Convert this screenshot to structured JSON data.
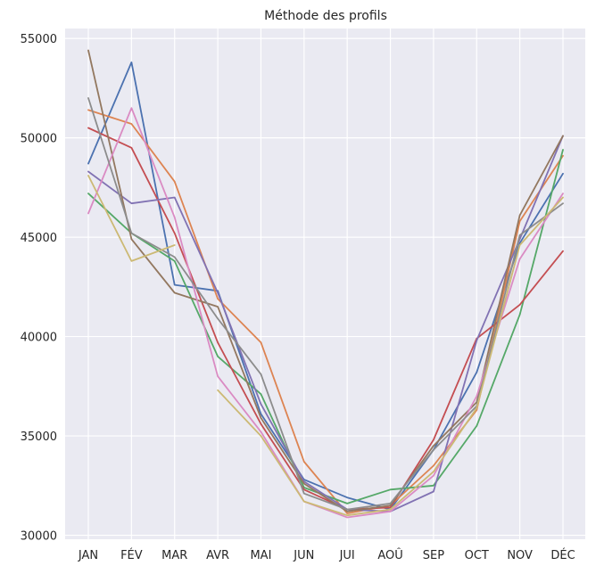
{
  "chart_data": {
    "type": "line",
    "title": "Méthode des profils",
    "xlabel": "",
    "ylabel": "",
    "categories": [
      "JAN",
      "FÉV",
      "MAR",
      "AVR",
      "MAI",
      "JUN",
      "JUI",
      "AOÛ",
      "SEP",
      "OCT",
      "NOV",
      "DÉC"
    ],
    "yticks": [
      "30000",
      "35000",
      "40000",
      "45000",
      "50000",
      "55000"
    ],
    "ylim": [
      29800,
      55500
    ],
    "grid": true,
    "legend": "none",
    "background": "#eaeaf2",
    "series": [
      {
        "color": "#4c72b0",
        "values": [
          48700,
          53800,
          42600,
          42300,
          36100,
          32800,
          31900,
          31300,
          34300,
          38200,
          44700,
          48200
        ],
        "partial": null
      },
      {
        "color": "#dd8452",
        "values": [
          51400,
          50700,
          47800,
          41900,
          39700,
          33700,
          31100,
          31500,
          33500,
          36300,
          45800,
          49100
        ],
        "partial": null
      },
      {
        "color": "#55a868",
        "values": [
          47200,
          45200,
          43800,
          39000,
          37100,
          32400,
          31600,
          32300,
          32500,
          35500,
          41100,
          49400
        ],
        "partial": null
      },
      {
        "color": "#c44e52",
        "values": [
          50500,
          49500,
          45200,
          39700,
          35600,
          32300,
          31300,
          31400,
          34800,
          39900,
          41600,
          44300
        ],
        "partial": null
      },
      {
        "color": "#8172b3",
        "values": [
          48300,
          46700,
          47000,
          42200,
          36600,
          32700,
          31300,
          31200,
          32200,
          39800,
          44900,
          50100
        ],
        "partial": null
      },
      {
        "color": "#937860",
        "values": [
          54400,
          44900,
          42200,
          41500,
          35900,
          32600,
          31200,
          31500,
          34500,
          36700,
          46100,
          50100
        ],
        "partial": null
      },
      {
        "color": "#da8bc3",
        "values": [
          46200,
          51500,
          46000,
          38000,
          35200,
          31700,
          30900,
          31200,
          33000,
          37000,
          43900,
          47200
        ],
        "partial": null
      },
      {
        "color": "#8c8c8c",
        "values": [
          52000,
          45200,
          44000,
          40900,
          38100,
          32100,
          31300,
          31600,
          34300,
          36500,
          45100,
          46700
        ],
        "partial": null
      },
      {
        "color": "#ccb974",
        "values": [
          48100,
          43800,
          44600,
          null,
          null,
          null,
          null,
          null,
          null,
          null,
          null,
          null
        ],
        "partial": null
      },
      {
        "color": "#ccb974",
        "values": [
          null,
          null,
          null,
          37300,
          35000,
          31700,
          31000,
          31300,
          33200,
          36400,
          44600,
          47000
        ],
        "partial": null
      }
    ]
  }
}
